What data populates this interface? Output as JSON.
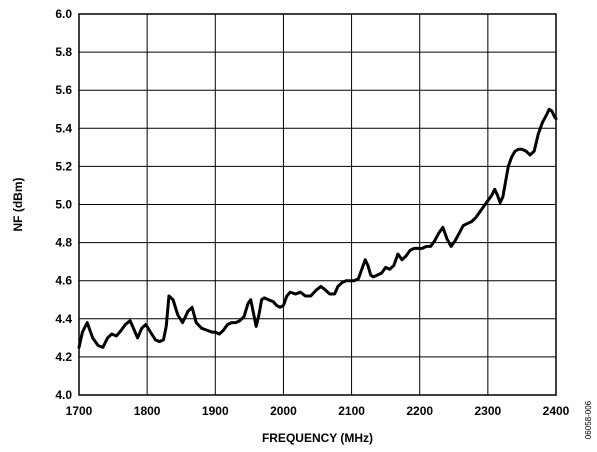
{
  "chart_data": {
    "type": "line",
    "title": "",
    "xlabel": "FREQUENCY (MHz)",
    "ylabel": "NF (dBm)",
    "xlim": [
      1700,
      2400
    ],
    "ylim": [
      4.0,
      6.0
    ],
    "x_ticks": [
      1700,
      1800,
      1900,
      2000,
      2100,
      2200,
      2300,
      2400
    ],
    "y_ticks": [
      "4.0",
      "4.2",
      "4.4",
      "4.6",
      "4.8",
      "5.0",
      "5.2",
      "5.4",
      "5.6",
      "5.8",
      "6.0"
    ],
    "grid": true,
    "line_color": "#000000",
    "series": [
      {
        "name": "",
        "x": [
          1700,
          1705,
          1712,
          1720,
          1728,
          1735,
          1742,
          1748,
          1755,
          1762,
          1768,
          1775,
          1780,
          1786,
          1792,
          1798,
          1805,
          1812,
          1818,
          1824,
          1828,
          1832,
          1838,
          1845,
          1852,
          1860,
          1866,
          1872,
          1880,
          1888,
          1895,
          1900,
          1906,
          1912,
          1918,
          1924,
          1930,
          1936,
          1942,
          1948,
          1952,
          1956,
          1960,
          1964,
          1968,
          1972,
          1978,
          1985,
          1990,
          1995,
          2000,
          2005,
          2010,
          2018,
          2025,
          2032,
          2040,
          2048,
          2055,
          2062,
          2068,
          2075,
          2080,
          2086,
          2092,
          2098,
          2104,
          2110,
          2116,
          2120,
          2124,
          2128,
          2132,
          2138,
          2144,
          2150,
          2156,
          2162,
          2168,
          2174,
          2180,
          2186,
          2192,
          2198,
          2204,
          2210,
          2216,
          2222,
          2228,
          2234,
          2240,
          2246,
          2252,
          2258,
          2264,
          2270,
          2276,
          2282,
          2288,
          2294,
          2300,
          2306,
          2310,
          2314,
          2318,
          2322,
          2326,
          2330,
          2335,
          2340,
          2345,
          2350,
          2356,
          2362,
          2368,
          2374,
          2380,
          2386,
          2390,
          2394,
          2398,
          2400
        ],
        "values": [
          4.25,
          4.33,
          4.38,
          4.3,
          4.26,
          4.25,
          4.3,
          4.32,
          4.31,
          4.34,
          4.37,
          4.39,
          4.35,
          4.3,
          4.35,
          4.37,
          4.33,
          4.29,
          4.28,
          4.29,
          4.36,
          4.52,
          4.5,
          4.42,
          4.38,
          4.44,
          4.46,
          4.38,
          4.35,
          4.34,
          4.33,
          4.33,
          4.32,
          4.34,
          4.37,
          4.38,
          4.38,
          4.39,
          4.41,
          4.48,
          4.5,
          4.43,
          4.36,
          4.42,
          4.5,
          4.51,
          4.5,
          4.49,
          4.47,
          4.46,
          4.47,
          4.52,
          4.54,
          4.53,
          4.54,
          4.52,
          4.52,
          4.55,
          4.57,
          4.55,
          4.53,
          4.53,
          4.57,
          4.59,
          4.6,
          4.6,
          4.6,
          4.61,
          4.67,
          4.71,
          4.68,
          4.63,
          4.62,
          4.63,
          4.64,
          4.67,
          4.66,
          4.68,
          4.74,
          4.71,
          4.73,
          4.76,
          4.77,
          4.77,
          4.77,
          4.78,
          4.78,
          4.81,
          4.85,
          4.88,
          4.82,
          4.78,
          4.81,
          4.85,
          4.89,
          4.9,
          4.91,
          4.93,
          4.96,
          4.99,
          5.02,
          5.05,
          5.08,
          5.05,
          5.01,
          5.04,
          5.12,
          5.2,
          5.25,
          5.28,
          5.29,
          5.29,
          5.28,
          5.26,
          5.28,
          5.37,
          5.43,
          5.47,
          5.5,
          5.49,
          5.46,
          5.45
        ]
      }
    ]
  },
  "figure_id": "06058-006"
}
